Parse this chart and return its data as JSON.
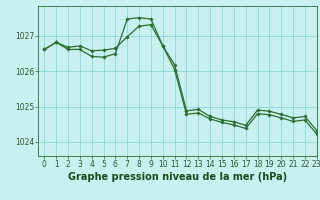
{
  "title": "Graphe pression niveau de la mer (hPa)",
  "bg_color": "#c8f0f0",
  "grid_color": "#88d8d8",
  "line_color": "#2d6e2d",
  "marker_color": "#2d6e2d",
  "xlim": [
    -0.5,
    23
  ],
  "ylim": [
    1023.6,
    1027.85
  ],
  "yticks": [
    1024,
    1025,
    1026,
    1027
  ],
  "xticks": [
    0,
    1,
    2,
    3,
    4,
    5,
    6,
    7,
    8,
    9,
    10,
    11,
    12,
    13,
    14,
    15,
    16,
    17,
    18,
    19,
    20,
    21,
    22,
    23
  ],
  "series1_x": [
    0,
    1,
    2,
    3,
    4,
    5,
    6,
    7,
    8,
    9,
    10,
    11,
    12,
    13,
    14,
    15,
    16,
    17,
    18,
    19,
    20,
    21,
    22,
    23
  ],
  "series1_y": [
    1026.62,
    1026.82,
    1026.68,
    1026.72,
    1026.58,
    1026.6,
    1026.65,
    1026.98,
    1027.28,
    1027.32,
    1026.72,
    1026.18,
    1024.88,
    1024.92,
    1024.72,
    1024.62,
    1024.57,
    1024.47,
    1024.9,
    1024.87,
    1024.78,
    1024.68,
    1024.72,
    1024.32
  ],
  "series2_x": [
    0,
    1,
    2,
    3,
    4,
    5,
    6,
    7,
    8,
    9,
    10,
    11,
    12,
    13,
    14,
    15,
    16,
    17,
    18,
    19,
    20,
    21,
    22,
    23
  ],
  "series2_y": [
    1026.62,
    1026.82,
    1026.62,
    1026.62,
    1026.42,
    1026.4,
    1026.5,
    1027.48,
    1027.52,
    1027.48,
    1026.72,
    1026.05,
    1024.78,
    1024.82,
    1024.65,
    1024.55,
    1024.48,
    1024.38,
    1024.8,
    1024.77,
    1024.68,
    1024.58,
    1024.62,
    1024.22
  ],
  "title_fontsize": 7,
  "tick_fontsize": 5.5,
  "title_color": "#2d5a2d",
  "xlabel_color": "#1a4a1a"
}
